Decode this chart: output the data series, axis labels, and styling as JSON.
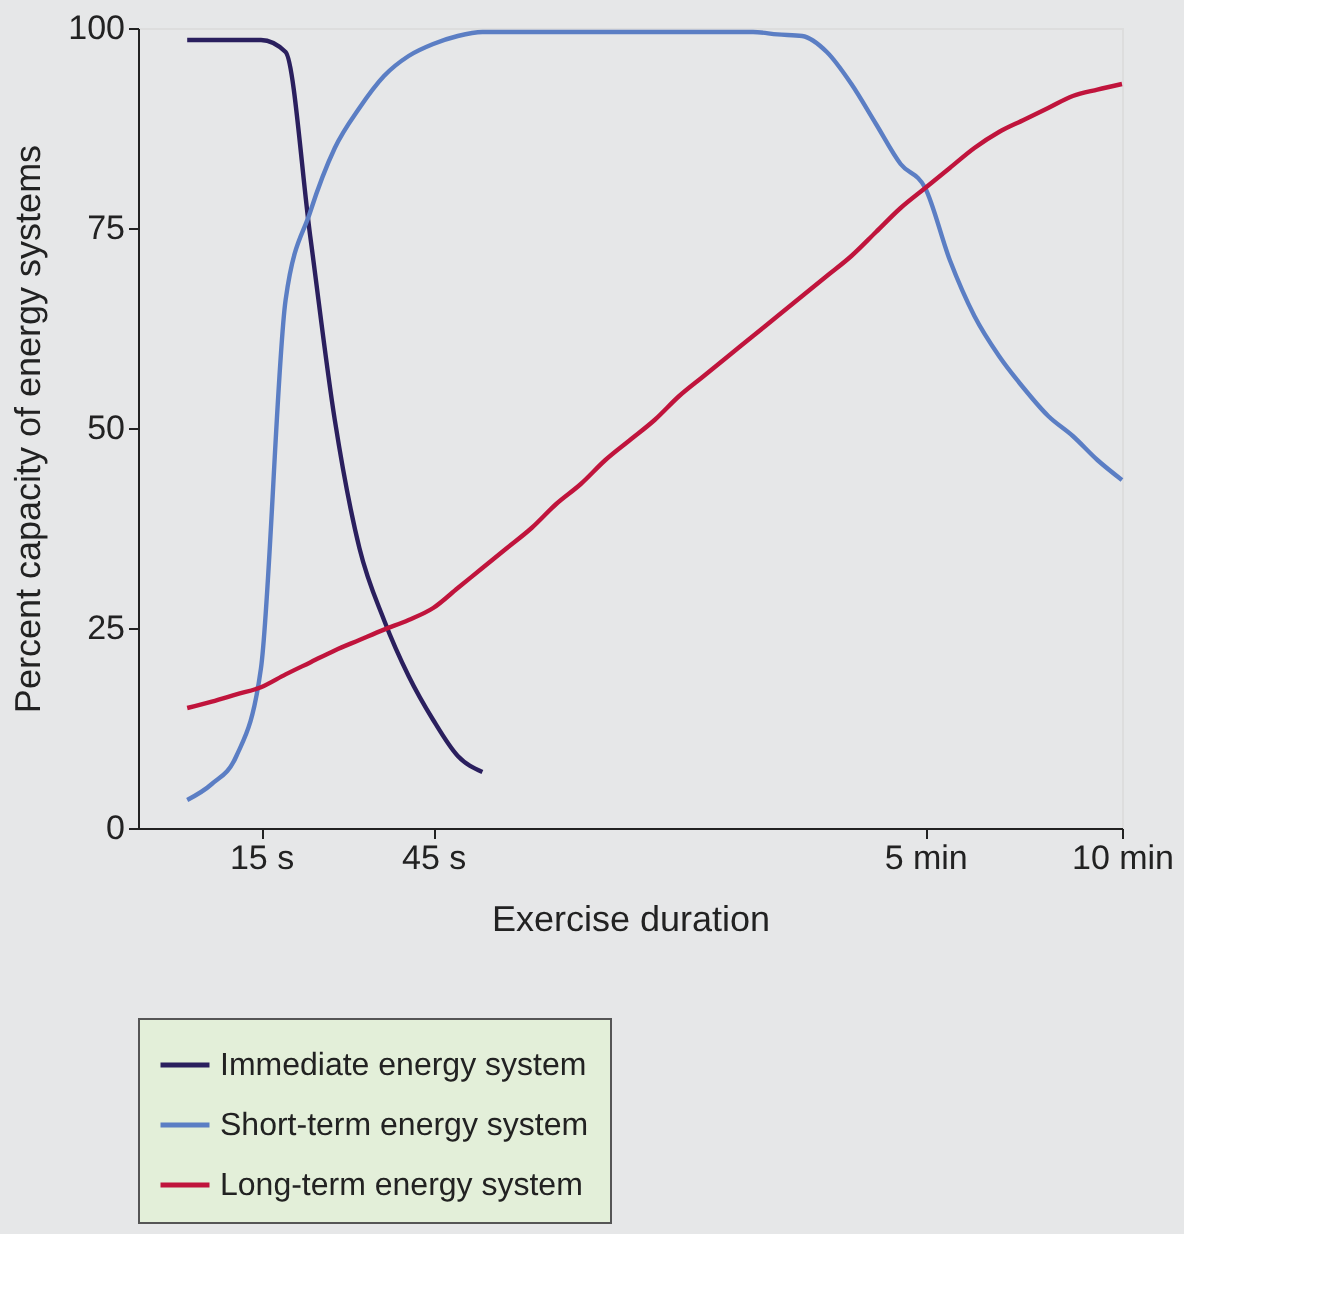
{
  "chart_data": {
    "type": "line",
    "xlabel": "Exercise duration",
    "ylabel": "Percent capacity of energy systems",
    "categories": [
      null,
      null,
      null,
      null,
      null,
      "15 s",
      null,
      null,
      null,
      null,
      null,
      null,
      "45 s",
      null,
      null,
      null,
      null,
      null,
      null,
      null,
      null,
      null,
      null,
      null,
      null,
      null,
      null,
      null,
      null,
      null,
      null,
      null,
      "5 min",
      null,
      null,
      null,
      null,
      null,
      null,
      null,
      "10 min"
    ],
    "ylim": [
      0,
      100
    ],
    "yticks": [
      0,
      25,
      50,
      75,
      100
    ],
    "grid": false,
    "legend": "bottom",
    "marker": "none",
    "line_style": "solid",
    "series": [
      {
        "name": "Immediate energy system",
        "color": "#2a1f5e",
        "values": [
          null,
          null,
          98.5,
          98.5,
          98.5,
          98.5,
          97,
          74,
          51,
          35,
          26,
          19,
          13.5,
          9,
          7,
          null,
          null,
          null,
          null,
          null,
          null,
          null,
          null,
          null,
          null,
          null,
          null,
          null,
          null,
          null,
          null,
          null,
          null,
          null,
          null,
          null,
          null,
          null,
          null,
          null,
          null
        ]
      },
      {
        "name": "Short-term energy system",
        "color": "#5b7ec4",
        "values": [
          null,
          null,
          3.5,
          5.5,
          9,
          20,
          66,
          77,
          85,
          90,
          94,
          96.5,
          98,
          99,
          99.5,
          99.5,
          99.5,
          99.5,
          99.5,
          99.5,
          99.5,
          99.5,
          99.5,
          99.5,
          99.5,
          99.5,
          99.2,
          99,
          97,
          93,
          88,
          83,
          80,
          71,
          64,
          59,
          55,
          51.5,
          49,
          46,
          43.5
        ]
      },
      {
        "name": "Long-term energy system",
        "color": "#c0143c",
        "values": [
          null,
          null,
          15,
          15.8,
          16.7,
          17.6,
          19.2,
          20.7,
          22.2,
          23.5,
          24.8,
          26,
          27.5,
          30,
          32.5,
          35,
          37.5,
          40.5,
          43,
          46,
          48.5,
          51,
          54,
          56.5,
          59,
          61.5,
          64,
          66.5,
          69,
          71.5,
          74.5,
          77.5,
          80,
          82.5,
          85,
          87,
          88.5,
          90,
          91.5,
          92.3,
          93
        ]
      }
    ]
  }
}
